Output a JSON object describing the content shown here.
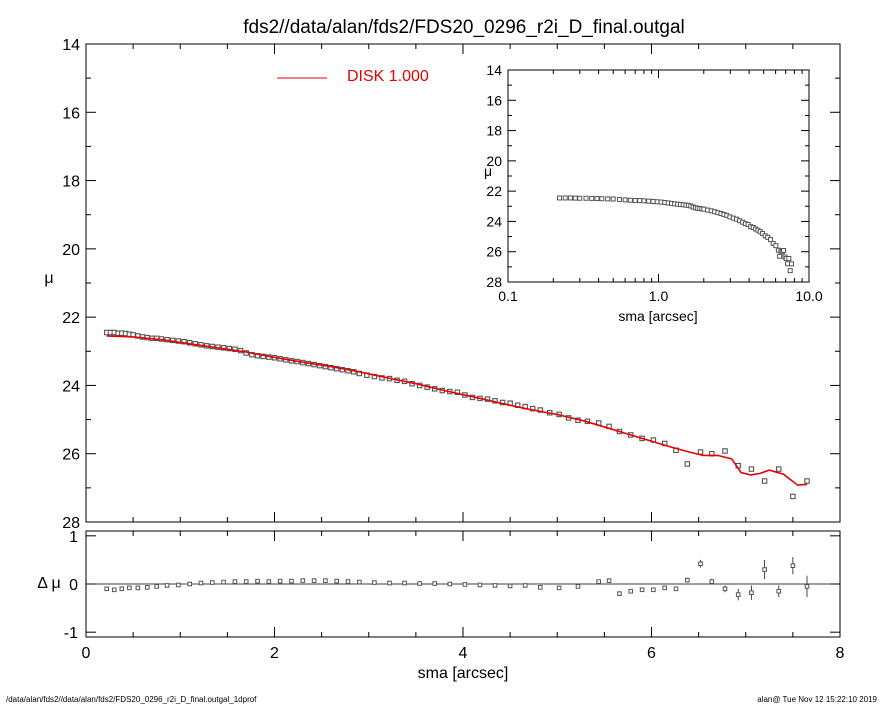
{
  "chart_data": [
    {
      "panel": "main",
      "type": "scatter",
      "title": "fds2//data/alan/fds2/FDS20_0296_r2i_D_final.outgal",
      "xlabel": "",
      "ylabel": "μ",
      "xlim": [
        0,
        8
      ],
      "ylim": [
        28,
        14
      ],
      "y_inverted": true,
      "x_ticks": [
        0,
        2,
        4,
        6,
        8
      ],
      "y_ticks": [
        14,
        16,
        18,
        20,
        22,
        24,
        26,
        28
      ],
      "legend": {
        "position": "top",
        "entries": [
          {
            "name": "DISK  1.000",
            "color": "#e60000"
          }
        ]
      },
      "series": [
        {
          "name": "observed",
          "kind": "points",
          "marker": "open-square",
          "color": "#555555",
          "x": [
            0.22,
            0.26,
            0.3,
            0.34,
            0.38,
            0.42,
            0.46,
            0.5,
            0.55,
            0.6,
            0.65,
            0.7,
            0.75,
            0.8,
            0.86,
            0.92,
            0.98,
            1.04,
            1.1,
            1.16,
            1.22,
            1.28,
            1.34,
            1.4,
            1.46,
            1.52,
            1.58,
            1.64,
            1.7,
            1.76,
            1.82,
            1.88,
            1.94,
            2.0,
            2.06,
            2.12,
            2.18,
            2.24,
            2.3,
            2.36,
            2.42,
            2.48,
            2.54,
            2.6,
            2.66,
            2.72,
            2.78,
            2.84,
            2.9,
            2.98,
            3.06,
            3.14,
            3.22,
            3.3,
            3.38,
            3.46,
            3.54,
            3.62,
            3.7,
            3.78,
            3.86,
            3.94,
            4.02,
            4.1,
            4.18,
            4.26,
            4.34,
            4.42,
            4.5,
            4.58,
            4.66,
            4.74,
            4.82,
            4.92,
            5.02,
            5.12,
            5.22,
            5.32,
            5.44,
            5.55,
            5.66,
            5.78,
            5.9,
            6.02,
            6.14,
            6.26,
            6.38,
            6.52,
            6.64,
            6.78,
            6.92,
            7.06,
            7.2,
            7.35,
            7.5,
            7.65
          ],
          "y": [
            22.45,
            22.45,
            22.45,
            22.47,
            22.47,
            22.48,
            22.5,
            22.52,
            22.55,
            22.58,
            22.6,
            22.62,
            22.62,
            22.64,
            22.66,
            22.68,
            22.7,
            22.72,
            22.75,
            22.78,
            22.81,
            22.84,
            22.86,
            22.88,
            22.9,
            22.92,
            22.94,
            22.98,
            23.05,
            23.1,
            23.13,
            23.15,
            23.17,
            23.19,
            23.22,
            23.25,
            23.28,
            23.3,
            23.33,
            23.36,
            23.39,
            23.42,
            23.45,
            23.48,
            23.51,
            23.54,
            23.57,
            23.6,
            23.65,
            23.7,
            23.74,
            23.78,
            23.8,
            23.85,
            23.88,
            23.95,
            24.0,
            24.05,
            24.1,
            24.15,
            24.18,
            24.2,
            24.28,
            24.35,
            24.38,
            24.4,
            24.45,
            24.5,
            24.52,
            24.58,
            24.62,
            24.68,
            24.72,
            24.8,
            24.85,
            24.95,
            25.02,
            25.05,
            25.1,
            25.2,
            25.35,
            25.45,
            25.55,
            25.6,
            25.7,
            25.9,
            26.3,
            25.95,
            26.0,
            25.92,
            26.35,
            26.45,
            26.8,
            26.45,
            27.25,
            26.8
          ]
        },
        {
          "name": "DISK  1.000",
          "kind": "line",
          "color": "#e60000",
          "x": [
            0.22,
            0.5,
            0.8,
            1.1,
            1.4,
            1.7,
            2.0,
            2.3,
            2.6,
            2.9,
            3.2,
            3.5,
            3.8,
            4.1,
            4.4,
            4.7,
            5.0,
            5.3,
            5.6,
            5.9,
            6.2,
            6.4,
            6.55,
            6.7,
            6.85,
            6.95,
            7.05,
            7.15,
            7.25,
            7.4,
            7.55,
            7.65
          ],
          "y": [
            22.55,
            22.58,
            22.66,
            22.78,
            22.9,
            23.02,
            23.18,
            23.32,
            23.45,
            23.6,
            23.78,
            23.95,
            24.15,
            24.33,
            24.52,
            24.7,
            24.85,
            25.05,
            25.3,
            25.55,
            25.8,
            25.95,
            26.05,
            26.05,
            26.15,
            26.55,
            26.62,
            26.58,
            26.48,
            26.6,
            26.92,
            26.9
          ]
        }
      ]
    },
    {
      "panel": "residual",
      "type": "scatter",
      "title": "",
      "xlabel": "sma [arcsec]",
      "ylabel": "Δ μ",
      "xlim": [
        0,
        8
      ],
      "ylim": [
        -1.1,
        1.1
      ],
      "x_ticks": [
        0,
        2,
        4,
        6,
        8
      ],
      "y_ticks": [
        -1,
        0,
        1
      ],
      "zero_line": true,
      "series": [
        {
          "name": "residual",
          "kind": "points",
          "marker": "open-square",
          "color": "#555555",
          "x": [
            0.22,
            0.3,
            0.38,
            0.46,
            0.55,
            0.65,
            0.75,
            0.86,
            0.98,
            1.1,
            1.22,
            1.34,
            1.46,
            1.58,
            1.7,
            1.82,
            1.94,
            2.06,
            2.18,
            2.3,
            2.42,
            2.54,
            2.66,
            2.78,
            2.9,
            3.06,
            3.22,
            3.38,
            3.54,
            3.7,
            3.86,
            4.02,
            4.18,
            4.34,
            4.5,
            4.66,
            4.82,
            5.02,
            5.22,
            5.44,
            5.55,
            5.66,
            5.78,
            5.9,
            6.02,
            6.14,
            6.26,
            6.38,
            6.52,
            6.64,
            6.78,
            6.92,
            7.06,
            7.2,
            7.35,
            7.5,
            7.65
          ],
          "y": [
            -0.1,
            -0.12,
            -0.1,
            -0.08,
            -0.08,
            -0.07,
            -0.05,
            -0.03,
            -0.02,
            0.0,
            0.02,
            0.03,
            0.04,
            0.05,
            0.05,
            0.06,
            0.05,
            0.06,
            0.06,
            0.07,
            0.07,
            0.07,
            0.06,
            0.05,
            0.04,
            0.03,
            0.02,
            0.02,
            0.01,
            0.01,
            0.0,
            -0.01,
            -0.02,
            -0.03,
            -0.04,
            -0.03,
            -0.07,
            -0.08,
            -0.05,
            0.05,
            0.07,
            -0.2,
            -0.15,
            -0.12,
            -0.12,
            -0.08,
            -0.1,
            0.08,
            0.42,
            0.05,
            -0.1,
            -0.22,
            -0.18,
            0.3,
            -0.15,
            0.38,
            -0.05
          ],
          "err": [
            0,
            0,
            0,
            0,
            0,
            0,
            0,
            0,
            0,
            0,
            0,
            0,
            0,
            0,
            0,
            0,
            0,
            0,
            0,
            0,
            0,
            0,
            0,
            0,
            0,
            0,
            0,
            0,
            0,
            0,
            0,
            0,
            0,
            0,
            0,
            0,
            0,
            0,
            0,
            0,
            0,
            0,
            0,
            0,
            0,
            0,
            0.04,
            0.05,
            0.08,
            0.06,
            0.07,
            0.12,
            0.15,
            0.2,
            0.12,
            0.18,
            0.22
          ]
        }
      ]
    },
    {
      "panel": "inset",
      "type": "scatter",
      "title": "",
      "xlabel": "sma [arcsec]",
      "ylabel": "μ",
      "x_scale": "log",
      "xlim": [
        0.1,
        10.0
      ],
      "ylim": [
        28,
        14
      ],
      "y_inverted": true,
      "x_ticks": [
        0.1,
        1.0,
        10.0
      ],
      "x_tick_labels": [
        "0.1",
        "1.0",
        "10.0"
      ],
      "y_ticks": [
        14,
        16,
        18,
        20,
        22,
        24,
        26,
        28
      ],
      "series": [
        {
          "name": "observed",
          "kind": "points",
          "marker": "open-square",
          "color": "#555555",
          "x": [
            0.22,
            0.24,
            0.26,
            0.28,
            0.3,
            0.33,
            0.36,
            0.39,
            0.42,
            0.46,
            0.5,
            0.55,
            0.6,
            0.65,
            0.7,
            0.75,
            0.8,
            0.86,
            0.92,
            0.98,
            1.04,
            1.1,
            1.16,
            1.22,
            1.28,
            1.34,
            1.4,
            1.46,
            1.52,
            1.58,
            1.64,
            1.7,
            1.76,
            1.82,
            1.88,
            1.94,
            2.0,
            2.12,
            2.24,
            2.36,
            2.48,
            2.6,
            2.72,
            2.84,
            2.98,
            3.14,
            3.3,
            3.46,
            3.62,
            3.78,
            3.94,
            4.1,
            4.26,
            4.42,
            4.58,
            4.74,
            4.92,
            5.12,
            5.32,
            5.55,
            5.78,
            6.02,
            6.26,
            6.38,
            6.52,
            6.64,
            6.78,
            6.92,
            7.06,
            7.2,
            7.35,
            7.5,
            7.65
          ],
          "y": [
            22.45,
            22.45,
            22.45,
            22.46,
            22.47,
            22.47,
            22.48,
            22.49,
            22.5,
            22.51,
            22.52,
            22.55,
            22.58,
            22.6,
            22.62,
            22.62,
            22.64,
            22.66,
            22.68,
            22.7,
            22.72,
            22.75,
            22.78,
            22.81,
            22.84,
            22.86,
            22.88,
            22.9,
            22.92,
            22.94,
            22.98,
            23.05,
            23.1,
            23.13,
            23.15,
            23.17,
            23.19,
            23.25,
            23.3,
            23.36,
            23.42,
            23.48,
            23.54,
            23.6,
            23.7,
            23.78,
            23.85,
            23.95,
            24.05,
            24.15,
            24.2,
            24.35,
            24.4,
            24.5,
            24.58,
            24.68,
            24.8,
            24.95,
            25.05,
            25.2,
            25.45,
            25.6,
            25.9,
            26.3,
            25.95,
            26.0,
            25.92,
            26.35,
            26.45,
            26.8,
            26.45,
            27.25,
            26.8
          ]
        }
      ]
    }
  ],
  "footer": {
    "left": "/data/alan/fds2//data/alan/fds2/FDS20_0296_r2i_D_final.outgal_1dprof",
    "right": "alan@  Tue Nov 12 15:22:10 2019"
  }
}
